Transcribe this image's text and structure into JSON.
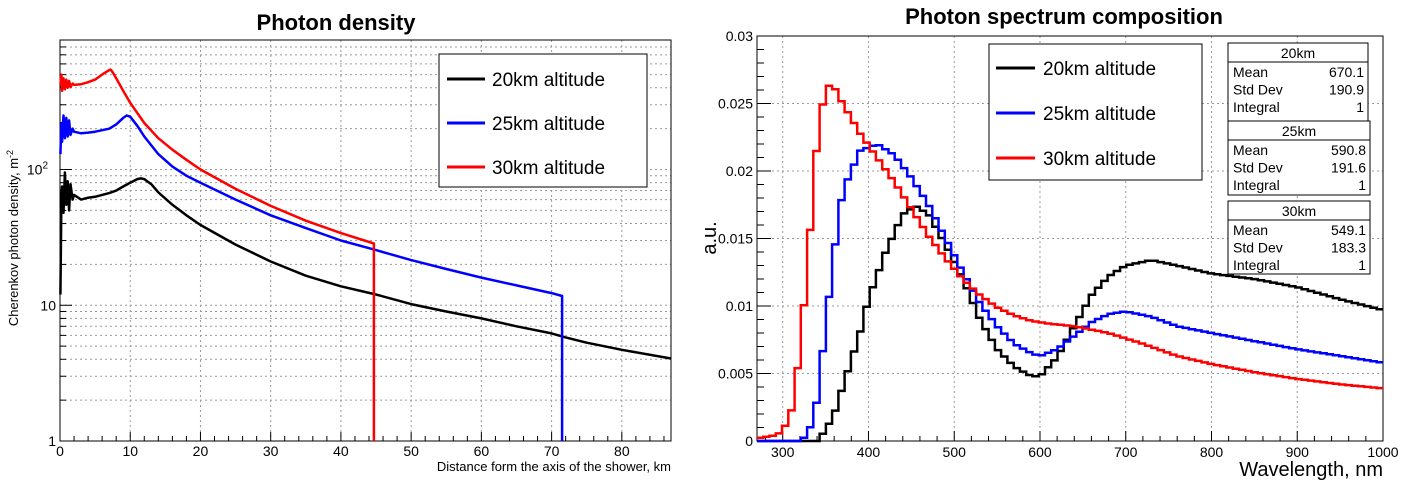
{
  "chart_data": [
    {
      "type": "line",
      "title": "Photon density",
      "xlabel": "Distance form the axis of the shower, km",
      "ylabel": "Cherenkov photon density, m",
      "ylabel_sup": "-2",
      "xlim": [
        0,
        87
      ],
      "ylim": [
        1,
        900
      ],
      "yscale": "log",
      "x_ticks": [
        0,
        10,
        20,
        30,
        40,
        50,
        60,
        70,
        80
      ],
      "y_ticks": [
        {
          "value": 1,
          "label": "1"
        },
        {
          "value": 10,
          "label": "10"
        },
        {
          "value": 100,
          "label": "10",
          "sup": "2"
        }
      ],
      "grid": true,
      "legend_position": "top-right",
      "series": [
        {
          "name": "20km altitude",
          "color": "#000000",
          "x": [
            0.05,
            0.2,
            0.3,
            0.5,
            0.7,
            0.9,
            1.1,
            1.3,
            1.5,
            1.8,
            2,
            3,
            4,
            5,
            6,
            7,
            8,
            9,
            10,
            11,
            11.5,
            12,
            13,
            14,
            16,
            18,
            20,
            25,
            30,
            35,
            40,
            45,
            50,
            55,
            60,
            65,
            70,
            72,
            75,
            80,
            87
          ],
          "y": [
            12,
            60,
            75,
            48,
            95,
            55,
            82,
            50,
            78,
            60,
            65,
            60,
            62,
            63,
            65,
            67,
            70,
            75,
            80,
            85,
            86,
            85,
            78,
            68,
            55,
            46,
            39,
            28,
            21,
            16.5,
            13.8,
            12.0,
            10.2,
            9.0,
            8.0,
            7.0,
            6.2,
            5.8,
            5.3,
            4.7,
            4.05
          ],
          "cutoff_x": null,
          "end_x": 87
        },
        {
          "name": "25km altitude",
          "color": "#0000ff",
          "x": [
            0.05,
            0.2,
            0.3,
            0.5,
            0.7,
            0.9,
            1.1,
            1.3,
            1.5,
            1.8,
            2,
            3,
            4,
            5,
            6,
            7,
            8,
            9,
            9.5,
            10,
            11,
            12,
            14,
            16,
            18,
            20,
            25,
            30,
            35,
            40,
            45,
            50,
            55,
            60,
            65,
            70,
            71.5
          ],
          "y": [
            130,
            220,
            160,
            250,
            170,
            240,
            175,
            230,
            180,
            200,
            190,
            185,
            187,
            190,
            195,
            200,
            215,
            240,
            250,
            245,
            210,
            175,
            130,
            105,
            90,
            80,
            60,
            46,
            37,
            30,
            25.5,
            21.5,
            18.5,
            16,
            14,
            12.3,
            11.7
          ],
          "cutoff_x": 71.5
        },
        {
          "name": "30km altitude",
          "color": "#ff0000",
          "x": [
            0.05,
            0.2,
            0.3,
            0.5,
            0.7,
            0.9,
            1.1,
            1.3,
            1.5,
            1.8,
            2,
            3,
            4,
            5,
            6,
            6.5,
            7,
            7.2,
            7.5,
            8,
            9,
            10,
            12,
            14,
            16,
            18,
            20,
            25,
            30,
            35,
            40,
            44.7
          ],
          "y": [
            420,
            500,
            380,
            470,
            390,
            460,
            400,
            450,
            405,
            430,
            420,
            425,
            440,
            460,
            500,
            520,
            540,
            545,
            520,
            470,
            380,
            310,
            220,
            170,
            140,
            118,
            100,
            72,
            54,
            42,
            34,
            28.5
          ],
          "cutoff_x": 44.7
        }
      ]
    },
    {
      "type": "line",
      "title": "Photon spectrum composition",
      "xlabel": "Wavelength, nm",
      "ylabel": "a.u.",
      "xlim": [
        270,
        1000
      ],
      "ylim": [
        0,
        0.03
      ],
      "x_ticks": [
        300,
        400,
        500,
        600,
        700,
        800,
        900,
        1000
      ],
      "y_ticks": [
        0,
        0.005,
        0.01,
        0.015,
        0.02,
        0.025,
        0.03
      ],
      "y_tick_labels": [
        "0",
        "0.005",
        "0.01",
        "0.015",
        "0.02",
        "0.025",
        "0.03"
      ],
      "grid": true,
      "legend_position": "top-center",
      "series": [
        {
          "name": "20km altitude",
          "color": "#000000",
          "x": [
            270,
            340,
            350,
            360,
            370,
            380,
            390,
            400,
            420,
            440,
            455,
            470,
            490,
            510,
            530,
            550,
            570,
            590,
            600,
            620,
            640,
            660,
            680,
            700,
            730,
            760,
            800,
            850,
            900,
            950,
            1000
          ],
          "y": [
            0,
            0,
            0.0008,
            0.002,
            0.004,
            0.006,
            0.008,
            0.0105,
            0.014,
            0.0168,
            0.0174,
            0.0168,
            0.0145,
            0.012,
            0.009,
            0.0068,
            0.0055,
            0.0048,
            0.0048,
            0.0062,
            0.0085,
            0.0108,
            0.0122,
            0.013,
            0.0134,
            0.013,
            0.0124,
            0.012,
            0.0114,
            0.0105,
            0.0097
          ]
        },
        {
          "name": "25km altitude",
          "color": "#0000ff",
          "x": [
            270,
            320,
            330,
            340,
            350,
            360,
            370,
            390,
            410,
            430,
            450,
            470,
            490,
            510,
            530,
            550,
            570,
            590,
            600,
            620,
            640,
            660,
            680,
            700,
            730,
            760,
            800,
            850,
            900,
            950,
            1000
          ],
          "y": [
            0,
            0,
            0.0005,
            0.003,
            0.0085,
            0.014,
            0.0185,
            0.0215,
            0.022,
            0.0212,
            0.0195,
            0.0175,
            0.015,
            0.0125,
            0.0102,
            0.0085,
            0.0072,
            0.0065,
            0.0063,
            0.0068,
            0.0078,
            0.0088,
            0.0094,
            0.0096,
            0.0092,
            0.0085,
            0.008,
            0.0074,
            0.0068,
            0.0063,
            0.0058
          ]
        },
        {
          "name": "30km altitude",
          "color": "#ff0000",
          "x": [
            270,
            290,
            300,
            310,
            320,
            330,
            340,
            350,
            360,
            370,
            390,
            410,
            430,
            450,
            470,
            490,
            510,
            530,
            550,
            570,
            590,
            610,
            640,
            680,
            720,
            760,
            800,
            850,
            900,
            950,
            1000
          ],
          "y": [
            0.0002,
            0.0004,
            0.0007,
            0.0022,
            0.0065,
            0.014,
            0.022,
            0.0264,
            0.0262,
            0.025,
            0.0228,
            0.021,
            0.0192,
            0.0172,
            0.0152,
            0.0135,
            0.012,
            0.0108,
            0.0099,
            0.0093,
            0.0089,
            0.0087,
            0.0085,
            0.008,
            0.0072,
            0.0063,
            0.0057,
            0.0051,
            0.0046,
            0.0042,
            0.0039
          ]
        }
      ],
      "stat_boxes": [
        {
          "title": "20km",
          "rows": [
            {
              "label": "Mean",
              "value": "670.1"
            },
            {
              "label": "Std Dev",
              "value": "190.9"
            },
            {
              "label": "Integral",
              "value": "1"
            }
          ]
        },
        {
          "title": "25km",
          "rows": [
            {
              "label": "Mean",
              "value": "590.8"
            },
            {
              "label": "Std Dev",
              "value": "191.6"
            },
            {
              "label": "Integral",
              "value": "1"
            }
          ]
        },
        {
          "title": "30km",
          "rows": [
            {
              "label": "Mean",
              "value": "549.1"
            },
            {
              "label": "Std Dev",
              "value": "183.3"
            },
            {
              "label": "Integral",
              "value": "1"
            }
          ]
        }
      ]
    }
  ]
}
